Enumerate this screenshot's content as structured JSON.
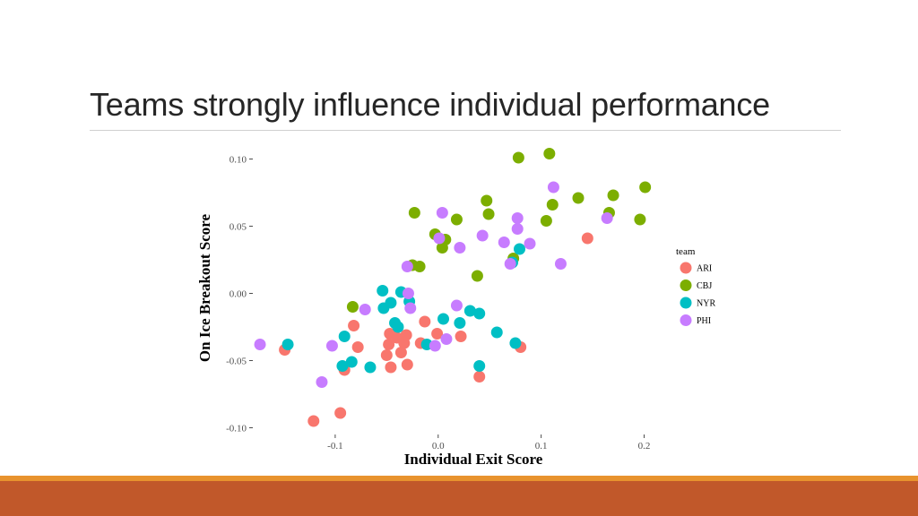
{
  "slide": {
    "title": "Teams strongly influence individual performance"
  },
  "colors": {
    "ARI": "#f8766d",
    "CBJ": "#7cae00",
    "NYR": "#00bfc4",
    "PHI": "#c77cff",
    "footer_accent": "#e8932e",
    "footer_bar": "#c1582a"
  },
  "chart_data": {
    "type": "scatter",
    "xlabel": "Individual Exit Score",
    "ylabel": "On Ice Breakout Score",
    "xlim": [
      -0.18,
      0.21
    ],
    "ylim": [
      -0.105,
      0.105
    ],
    "x_ticks": [
      -0.1,
      0.0,
      0.1,
      0.2
    ],
    "x_tick_labels": [
      "-0.1",
      "0.0",
      "0.1",
      "0.2"
    ],
    "y_ticks": [
      -0.1,
      -0.05,
      0.0,
      0.05,
      0.1
    ],
    "y_tick_labels": [
      "-0.10",
      "-0.05",
      "0.00",
      "0.05",
      "0.10"
    ],
    "grid": false,
    "legend_title": "team",
    "legend_position": "right",
    "series": [
      {
        "name": "ARI",
        "points": [
          [
            -0.149,
            -0.042
          ],
          [
            -0.121,
            -0.095
          ],
          [
            -0.095,
            -0.089
          ],
          [
            -0.091,
            -0.057
          ],
          [
            -0.082,
            -0.024
          ],
          [
            -0.078,
            -0.04
          ],
          [
            -0.05,
            -0.046
          ],
          [
            -0.048,
            -0.038
          ],
          [
            -0.047,
            -0.03
          ],
          [
            -0.046,
            -0.055
          ],
          [
            -0.04,
            -0.033
          ],
          [
            -0.036,
            -0.044
          ],
          [
            -0.033,
            -0.037
          ],
          [
            -0.031,
            -0.031
          ],
          [
            -0.03,
            -0.053
          ],
          [
            -0.017,
            -0.037
          ],
          [
            -0.013,
            -0.021
          ],
          [
            -0.001,
            -0.03
          ],
          [
            0.022,
            -0.032
          ],
          [
            0.04,
            -0.062
          ],
          [
            0.08,
            -0.04
          ],
          [
            0.145,
            0.041
          ]
        ]
      },
      {
        "name": "CBJ",
        "points": [
          [
            -0.083,
            -0.01
          ],
          [
            -0.025,
            0.021
          ],
          [
            -0.023,
            0.06
          ],
          [
            -0.018,
            0.02
          ],
          [
            -0.003,
            0.044
          ],
          [
            0.004,
            0.034
          ],
          [
            0.007,
            0.04
          ],
          [
            0.018,
            0.055
          ],
          [
            0.038,
            0.013
          ],
          [
            0.047,
            0.069
          ],
          [
            0.049,
            0.059
          ],
          [
            0.073,
            0.026
          ],
          [
            0.078,
            0.101
          ],
          [
            0.105,
            0.054
          ],
          [
            0.108,
            0.104
          ],
          [
            0.111,
            0.066
          ],
          [
            0.136,
            0.071
          ],
          [
            0.166,
            0.06
          ],
          [
            0.17,
            0.073
          ],
          [
            0.196,
            0.055
          ],
          [
            0.201,
            0.079
          ]
        ]
      },
      {
        "name": "NYR",
        "points": [
          [
            -0.146,
            -0.038
          ],
          [
            -0.093,
            -0.054
          ],
          [
            -0.091,
            -0.032
          ],
          [
            -0.084,
            -0.051
          ],
          [
            -0.066,
            -0.055
          ],
          [
            -0.054,
            0.002
          ],
          [
            -0.053,
            -0.011
          ],
          [
            -0.046,
            -0.007
          ],
          [
            -0.042,
            -0.022
          ],
          [
            -0.039,
            -0.025
          ],
          [
            -0.036,
            0.001
          ],
          [
            -0.028,
            -0.006
          ],
          [
            -0.011,
            -0.038
          ],
          [
            0.005,
            -0.019
          ],
          [
            0.021,
            -0.022
          ],
          [
            0.031,
            -0.013
          ],
          [
            0.04,
            -0.015
          ],
          [
            0.04,
            -0.054
          ],
          [
            0.057,
            -0.029
          ],
          [
            0.072,
            0.023
          ],
          [
            0.075,
            -0.037
          ],
          [
            0.079,
            0.033
          ]
        ]
      },
      {
        "name": "PHI",
        "points": [
          [
            -0.173,
            -0.038
          ],
          [
            -0.113,
            -0.066
          ],
          [
            -0.103,
            -0.039
          ],
          [
            -0.071,
            -0.012
          ],
          [
            -0.03,
            0.02
          ],
          [
            -0.029,
            0.0
          ],
          [
            -0.027,
            -0.011
          ],
          [
            -0.003,
            -0.039
          ],
          [
            0.001,
            0.041
          ],
          [
            0.004,
            0.06
          ],
          [
            0.008,
            -0.034
          ],
          [
            0.018,
            -0.009
          ],
          [
            0.021,
            0.034
          ],
          [
            0.043,
            0.043
          ],
          [
            0.064,
            0.038
          ],
          [
            0.07,
            0.022
          ],
          [
            0.077,
            0.056
          ],
          [
            0.077,
            0.048
          ],
          [
            0.089,
            0.037
          ],
          [
            0.112,
            0.079
          ],
          [
            0.119,
            0.022
          ],
          [
            0.164,
            0.056
          ]
        ]
      }
    ]
  }
}
